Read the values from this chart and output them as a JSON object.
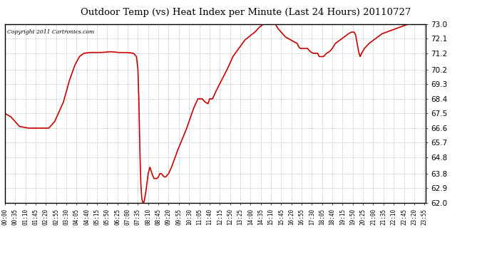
{
  "title": "Outdoor Temp (vs) Heat Index per Minute (Last 24 Hours) 20110727",
  "copyright_text": "Copyright 2011 Cartronics.com",
  "line_color": "#cc0000",
  "background_color": "#ffffff",
  "plot_bg_color": "#ffffff",
  "grid_color": "#aaaaaa",
  "y_min": 62.0,
  "y_max": 73.0,
  "y_ticks": [
    62.0,
    62.9,
    63.8,
    64.8,
    65.7,
    66.6,
    67.5,
    68.4,
    69.3,
    70.2,
    71.2,
    72.1,
    73.0
  ],
  "x_labels": [
    "00:00",
    "00:35",
    "01:10",
    "01:45",
    "02:20",
    "02:55",
    "03:30",
    "04:05",
    "04:40",
    "05:15",
    "05:50",
    "06:25",
    "07:00",
    "07:35",
    "08:10",
    "08:45",
    "09:20",
    "09:55",
    "10:30",
    "11:05",
    "11:40",
    "12:15",
    "12:50",
    "13:25",
    "14:00",
    "14:35",
    "15:10",
    "15:45",
    "16:20",
    "16:55",
    "17:30",
    "18:05",
    "18:40",
    "19:15",
    "19:50",
    "20:25",
    "21:00",
    "21:35",
    "22:10",
    "22:45",
    "23:20",
    "23:55"
  ],
  "control_points": [
    [
      0,
      67.5
    ],
    [
      20,
      67.3
    ],
    [
      50,
      66.7
    ],
    [
      80,
      66.6
    ],
    [
      100,
      66.6
    ],
    [
      120,
      66.6
    ],
    [
      150,
      66.6
    ],
    [
      170,
      67.0
    ],
    [
      200,
      68.2
    ],
    [
      220,
      69.5
    ],
    [
      240,
      70.5
    ],
    [
      255,
      71.0
    ],
    [
      270,
      71.2
    ],
    [
      290,
      71.25
    ],
    [
      330,
      71.25
    ],
    [
      360,
      71.3
    ],
    [
      390,
      71.25
    ],
    [
      420,
      71.25
    ],
    [
      440,
      71.2
    ],
    [
      450,
      71.0
    ],
    [
      455,
      70.2
    ],
    [
      458,
      68.5
    ],
    [
      462,
      65.0
    ],
    [
      465,
      63.2
    ],
    [
      468,
      62.3
    ],
    [
      471,
      62.05
    ],
    [
      474,
      62.0
    ],
    [
      477,
      62.15
    ],
    [
      483,
      62.8
    ],
    [
      490,
      63.8
    ],
    [
      496,
      64.2
    ],
    [
      503,
      63.8
    ],
    [
      510,
      63.5
    ],
    [
      515,
      63.5
    ],
    [
      520,
      63.5
    ],
    [
      525,
      63.6
    ],
    [
      530,
      63.8
    ],
    [
      535,
      63.8
    ],
    [
      540,
      63.7
    ],
    [
      545,
      63.6
    ],
    [
      550,
      63.6
    ],
    [
      560,
      63.8
    ],
    [
      570,
      64.2
    ],
    [
      590,
      65.2
    ],
    [
      620,
      66.5
    ],
    [
      645,
      67.8
    ],
    [
      660,
      68.4
    ],
    [
      675,
      68.4
    ],
    [
      685,
      68.2
    ],
    [
      695,
      68.1
    ],
    [
      700,
      68.4
    ],
    [
      710,
      68.4
    ],
    [
      720,
      68.8
    ],
    [
      740,
      69.5
    ],
    [
      760,
      70.2
    ],
    [
      780,
      71.0
    ],
    [
      800,
      71.5
    ],
    [
      820,
      72.0
    ],
    [
      840,
      72.3
    ],
    [
      855,
      72.5
    ],
    [
      870,
      72.8
    ],
    [
      885,
      73.0
    ],
    [
      900,
      73.1
    ],
    [
      910,
      73.2
    ],
    [
      920,
      73.1
    ],
    [
      925,
      73.0
    ],
    [
      935,
      72.7
    ],
    [
      945,
      72.5
    ],
    [
      955,
      72.3
    ],
    [
      960,
      72.2
    ],
    [
      970,
      72.1
    ],
    [
      980,
      72.0
    ],
    [
      990,
      71.9
    ],
    [
      1000,
      71.8
    ],
    [
      1005,
      71.6
    ],
    [
      1010,
      71.5
    ],
    [
      1020,
      71.5
    ],
    [
      1035,
      71.5
    ],
    [
      1045,
      71.3
    ],
    [
      1055,
      71.2
    ],
    [
      1060,
      71.2
    ],
    [
      1070,
      71.2
    ],
    [
      1075,
      71.0
    ],
    [
      1080,
      71.0
    ],
    [
      1090,
      71.0
    ],
    [
      1095,
      71.1
    ],
    [
      1100,
      71.2
    ],
    [
      1110,
      71.3
    ],
    [
      1120,
      71.5
    ],
    [
      1130,
      71.8
    ],
    [
      1145,
      72.0
    ],
    [
      1160,
      72.2
    ],
    [
      1175,
      72.4
    ],
    [
      1185,
      72.5
    ],
    [
      1195,
      72.5
    ],
    [
      1200,
      72.3
    ],
    [
      1205,
      71.8
    ],
    [
      1210,
      71.3
    ],
    [
      1215,
      71.0
    ],
    [
      1220,
      71.2
    ],
    [
      1230,
      71.5
    ],
    [
      1245,
      71.8
    ],
    [
      1260,
      72.0
    ],
    [
      1275,
      72.2
    ],
    [
      1290,
      72.4
    ],
    [
      1305,
      72.5
    ],
    [
      1320,
      72.6
    ],
    [
      1335,
      72.7
    ],
    [
      1350,
      72.8
    ],
    [
      1365,
      72.9
    ],
    [
      1380,
      73.0
    ],
    [
      1395,
      73.0
    ],
    [
      1410,
      73.0
    ],
    [
      1425,
      73.0
    ],
    [
      1439,
      73.0
    ]
  ]
}
